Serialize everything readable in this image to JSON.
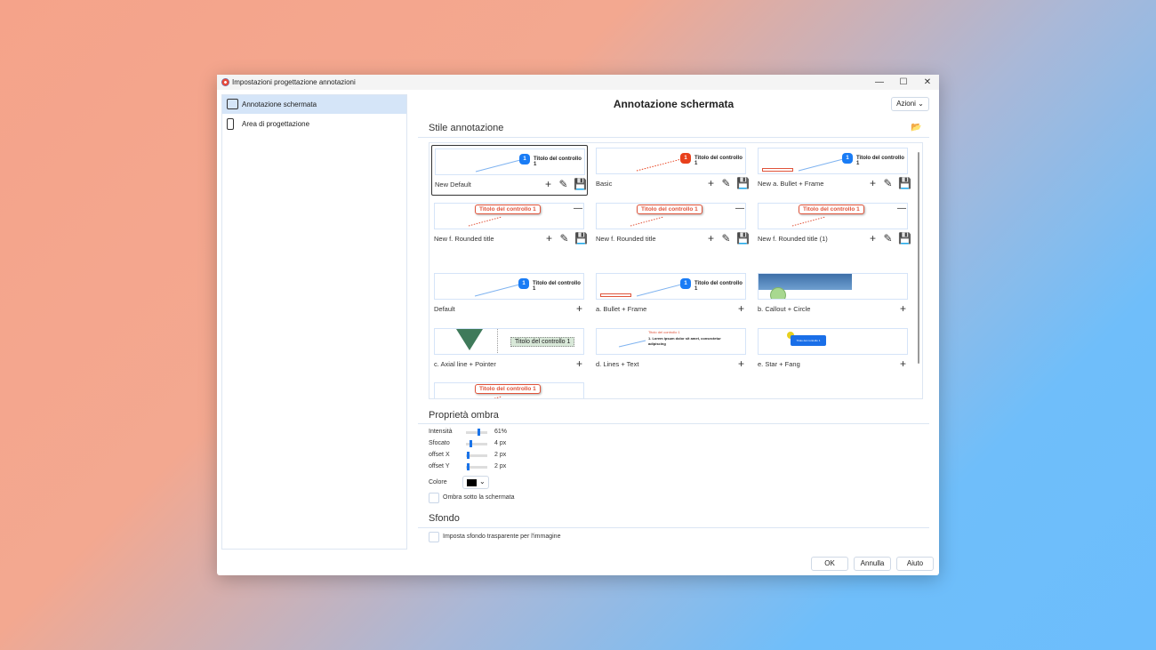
{
  "window": {
    "title": "Impostazioni progettazione annotazioni",
    "controls": [
      "—",
      "☐",
      "✕"
    ]
  },
  "sidebar": {
    "items": [
      {
        "label": "Annotazione schermata",
        "icon": "screenshot-annotation-icon",
        "selected": true
      },
      {
        "label": "Area di progettazione",
        "icon": "ruler-icon",
        "selected": false
      }
    ]
  },
  "header": {
    "title": "Annotazione schermata",
    "actions_label": "Azioni"
  },
  "styles": {
    "title": "Stile annotazione",
    "sample_title": "Titolo del controllo 1",
    "sample_text": "1. Lorem ipsum dolor sit amet, consectetur adipiscing",
    "cards": [
      {
        "label": "New Default",
        "preview": "blue",
        "actions": [
          "add",
          "edit",
          "save"
        ],
        "selected": true
      },
      {
        "label": "Basic",
        "preview": "red",
        "actions": [
          "add",
          "edit",
          "save"
        ]
      },
      {
        "label": "New a. Bullet + Frame",
        "preview": "frame",
        "actions": [
          "add",
          "edit",
          "save"
        ]
      },
      {
        "label": "New f. Rounded title",
        "preview": "rounded",
        "actions": [
          "remove",
          "add",
          "edit",
          "save"
        ]
      },
      {
        "label": "New f. Rounded title",
        "preview": "rounded",
        "actions": [
          "remove",
          "add",
          "edit",
          "save"
        ]
      },
      {
        "label": "New f. Rounded title (1)",
        "preview": "rounded",
        "actions": [
          "remove",
          "add",
          "edit",
          "save"
        ]
      },
      {
        "label": "Default",
        "preview": "blue",
        "actions": [
          "add"
        ]
      },
      {
        "label": "a. Bullet + Frame",
        "preview": "frame",
        "actions": [
          "add"
        ]
      },
      {
        "label": "b. Callout + Circle",
        "preview": "callout",
        "actions": [
          "add"
        ]
      },
      {
        "label": "c. Axial line + Pointer",
        "preview": "axial",
        "actions": [
          "add"
        ]
      },
      {
        "label": "d. Lines + Text",
        "preview": "lines",
        "actions": [
          "add"
        ]
      },
      {
        "label": "e. Star + Fang",
        "preview": "star",
        "actions": [
          "add"
        ]
      },
      {
        "label": "",
        "preview": "rounded",
        "actions": []
      }
    ]
  },
  "shadow": {
    "title": "Proprietà ombra",
    "rows": [
      {
        "label": "Intensità",
        "value": "61%",
        "level": 0.61
      },
      {
        "label": "Sfocato",
        "value": "4 px",
        "level": 0.2
      },
      {
        "label": "offset X",
        "value": "2 px",
        "level": 0.05
      },
      {
        "label": "offset Y",
        "value": "2 px",
        "level": 0.05
      }
    ],
    "color_label": "Colore",
    "color": "#000000",
    "under_label": "Ombra sotto la schermata",
    "under_checked": false
  },
  "background": {
    "title": "Sfondo",
    "transparent_label": "Imposta sfondo trasparente per l'immagine",
    "transparent_checked": false
  },
  "footer": {
    "ok": "OK",
    "cancel": "Annulla",
    "help": "Aiuto"
  },
  "colors": {
    "accent": "#1a73e8",
    "blue_bubble": "#1a7cf5",
    "red_bubble": "#e8401c",
    "title_red": "#e0533a"
  }
}
